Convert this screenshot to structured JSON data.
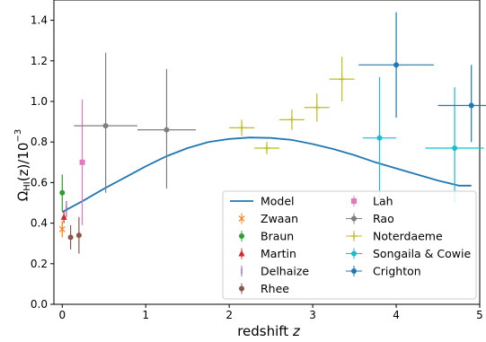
{
  "chart_data": {
    "type": "scatter",
    "title": "",
    "xlabel": "redshift z",
    "ylabel": "Ω_HI(z)/10^-3",
    "xlim": [
      -0.1,
      5.0
    ],
    "ylim": [
      0.0,
      1.5
    ],
    "xticks": [
      0,
      1,
      2,
      3,
      4,
      5
    ],
    "yticks": [
      0.0,
      0.2,
      0.4,
      0.6,
      0.8,
      1.0,
      1.2,
      1.4
    ],
    "xtick_labels": [
      "0",
      "1",
      "2",
      "3",
      "4",
      "5"
    ],
    "ytick_labels": [
      "0.0",
      "0.2",
      "0.4",
      "0.6",
      "0.8",
      "1.0",
      "1.2",
      "1.4"
    ],
    "grid": false,
    "legend_position": "lower right",
    "model": {
      "name": "Model",
      "color": "#1f77b4",
      "x": [
        0,
        0.25,
        0.5,
        0.75,
        1.0,
        1.25,
        1.5,
        1.75,
        2.0,
        2.25,
        2.5,
        2.75,
        3.0,
        3.25,
        3.5,
        3.75,
        4.0,
        4.25,
        4.5,
        4.75,
        4.9
      ],
      "y": [
        0.455,
        0.51,
        0.57,
        0.625,
        0.68,
        0.73,
        0.77,
        0.8,
        0.815,
        0.822,
        0.82,
        0.81,
        0.79,
        0.765,
        0.735,
        0.7,
        0.67,
        0.64,
        0.61,
        0.585,
        0.585
      ]
    },
    "series": [
      {
        "name": "Zwaan",
        "color": "#ff7f0e",
        "marker": "x",
        "points": [
          {
            "x": 0.0,
            "y": 0.37,
            "xerr": [
              0.0,
              0.0
            ],
            "yerr": [
              0.04,
              0.04
            ]
          }
        ]
      },
      {
        "name": "Braun",
        "color": "#2ca02c",
        "marker": "circle",
        "points": [
          {
            "x": 0.0,
            "y": 0.55,
            "xerr": [
              0.0,
              0.0
            ],
            "yerr": [
              0.09,
              0.09
            ]
          }
        ]
      },
      {
        "name": "Martin",
        "color": "#d62728",
        "marker": "triangle",
        "points": [
          {
            "x": 0.02,
            "y": 0.43,
            "xerr": [
              0.0,
              0.0
            ],
            "yerr": [
              0.03,
              0.03
            ]
          }
        ]
      },
      {
        "name": "Delhaize",
        "color": "#9467bd",
        "marker": "tick",
        "points": [
          {
            "x": 0.05,
            "y": 0.47,
            "xerr": [
              0.0,
              0.0
            ],
            "yerr": [
              0.04,
              0.04
            ]
          }
        ]
      },
      {
        "name": "Rhee",
        "color": "#8c564b",
        "marker": "circle",
        "points": [
          {
            "x": 0.1,
            "y": 0.33,
            "xerr": [
              0.0,
              0.0
            ],
            "yerr": [
              0.06,
              0.06
            ]
          },
          {
            "x": 0.2,
            "y": 0.34,
            "xerr": [
              0.0,
              0.0
            ],
            "yerr": [
              0.09,
              0.09
            ]
          }
        ]
      },
      {
        "name": "Lah",
        "color": "#e377c2",
        "marker": "square",
        "points": [
          {
            "x": 0.24,
            "y": 0.7,
            "xerr": [
              0.0,
              0.0
            ],
            "yerr": [
              0.31,
              0.31
            ]
          }
        ]
      },
      {
        "name": "Rao",
        "color": "#7f7f7f",
        "marker": "circle",
        "points": [
          {
            "x": 0.52,
            "y": 0.88,
            "xerr": [
              0.38,
              0.38
            ],
            "yerr": [
              0.33,
              0.36
            ]
          },
          {
            "x": 1.25,
            "y": 0.86,
            "xerr": [
              0.35,
              0.35
            ],
            "yerr": [
              0.29,
              0.3
            ]
          }
        ]
      },
      {
        "name": "Noterdaeme",
        "color": "#bcbd22",
        "marker": "plus",
        "points": [
          {
            "x": 2.15,
            "y": 0.87,
            "xerr": [
              0.15,
              0.15
            ],
            "yerr": [
              0.04,
              0.04
            ]
          },
          {
            "x": 2.45,
            "y": 0.77,
            "xerr": [
              0.15,
              0.15
            ],
            "yerr": [
              0.03,
              0.03
            ]
          },
          {
            "x": 2.75,
            "y": 0.91,
            "xerr": [
              0.15,
              0.15
            ],
            "yerr": [
              0.05,
              0.05
            ]
          },
          {
            "x": 3.05,
            "y": 0.97,
            "xerr": [
              0.15,
              0.15
            ],
            "yerr": [
              0.07,
              0.07
            ]
          },
          {
            "x": 3.35,
            "y": 1.11,
            "xerr": [
              0.15,
              0.15
            ],
            "yerr": [
              0.11,
              0.11
            ]
          }
        ]
      },
      {
        "name": "Songaila & Cowie",
        "color": "#17becf",
        "marker": "circle",
        "points": [
          {
            "x": 3.8,
            "y": 0.82,
            "xerr": [
              0.2,
              0.2
            ],
            "yerr": [
              0.3,
              0.3
            ]
          },
          {
            "x": 4.7,
            "y": 0.77,
            "xerr": [
              0.35,
              0.35
            ],
            "yerr": [
              0.27,
              0.3
            ]
          }
        ]
      },
      {
        "name": "Crighton",
        "color": "#1f77b4",
        "marker": "circle",
        "points": [
          {
            "x": 4.0,
            "y": 1.18,
            "xerr": [
              0.45,
              0.45
            ],
            "yerr": [
              0.26,
              0.26
            ]
          },
          {
            "x": 4.9,
            "y": 0.98,
            "xerr": [
              0.4,
              0.4
            ],
            "yerr": [
              0.18,
              0.2
            ]
          }
        ]
      }
    ]
  }
}
